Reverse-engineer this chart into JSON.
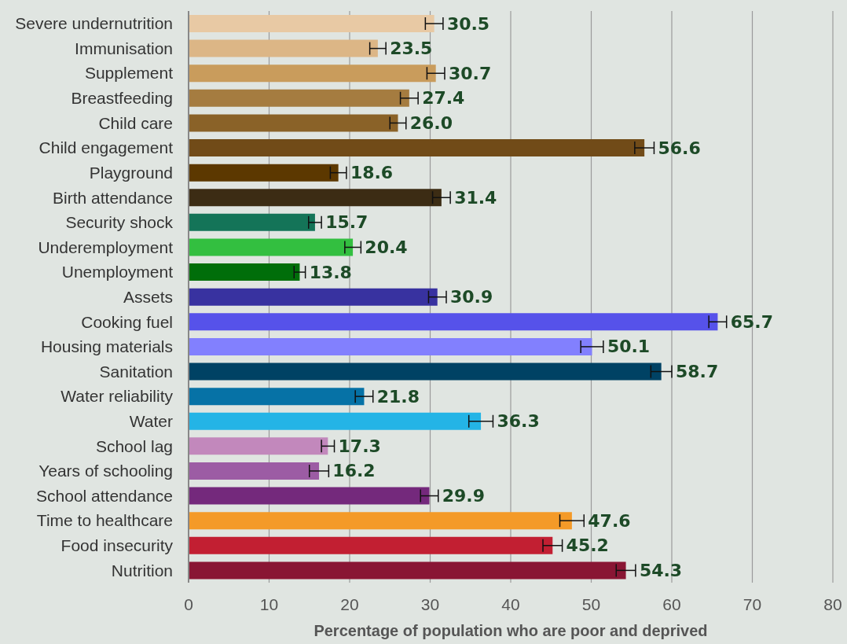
{
  "chart_data": {
    "type": "bar",
    "orientation": "horizontal",
    "xlabel": "Percentage of population who are poor and deprived",
    "categories": [
      "Severe undernutrition",
      "Immunisation",
      "Supplement",
      "Breastfeeding",
      "Child care",
      "Child engagement",
      "Playground",
      "Birth attendance",
      "Security shock",
      "Underemployment",
      "Unemployment",
      "Assets",
      "Cooking fuel",
      "Housing materials",
      "Sanitation",
      "Water reliability",
      "Water",
      "School lag",
      "Years of schooling",
      "School attendance",
      "Time to healthcare",
      "Food insecurity",
      "Nutrition"
    ],
    "values": [
      30.5,
      23.5,
      30.7,
      27.4,
      26.0,
      56.6,
      18.6,
      31.4,
      15.7,
      20.4,
      13.8,
      30.9,
      65.7,
      50.1,
      58.7,
      21.8,
      36.3,
      17.3,
      16.2,
      29.9,
      47.6,
      45.2,
      54.3
    ],
    "errors": [
      1.1,
      1.0,
      1.1,
      1.1,
      1.0,
      1.2,
      1.0,
      1.1,
      0.8,
      1.0,
      0.7,
      1.1,
      1.1,
      1.4,
      1.3,
      1.1,
      1.5,
      0.8,
      1.2,
      1.1,
      1.5,
      1.2,
      1.2
    ],
    "colors": [
      "#e8c9a4",
      "#dcb686",
      "#c99c5c",
      "#a57c40",
      "#8a6228",
      "#714b18",
      "#5c3800",
      "#3c2c14",
      "#147458",
      "#33bf40",
      "#006e0a",
      "#3832a0",
      "#5652ea",
      "#8280fe",
      "#004264",
      "#0672a6",
      "#24b4e6",
      "#c288bc",
      "#9c5ca4",
      "#74297c",
      "#f49a28",
      "#c21f32",
      "#891634"
    ],
    "value_labels": [
      "30.5",
      "23.5",
      "30.7",
      "27.4",
      "26.0",
      "56.6",
      "18.6",
      "31.4",
      "15.7",
      "20.4",
      "13.8",
      "30.9",
      "65.7",
      "50.1",
      "58.7",
      "21.8",
      "36.3",
      "17.3",
      "16.2",
      "29.9",
      "47.6",
      "45.2",
      "54.3"
    ],
    "xlim": [
      0,
      80
    ],
    "xticks": [
      0,
      10,
      20,
      30,
      40,
      50,
      60,
      70,
      80
    ],
    "grid": "x"
  }
}
